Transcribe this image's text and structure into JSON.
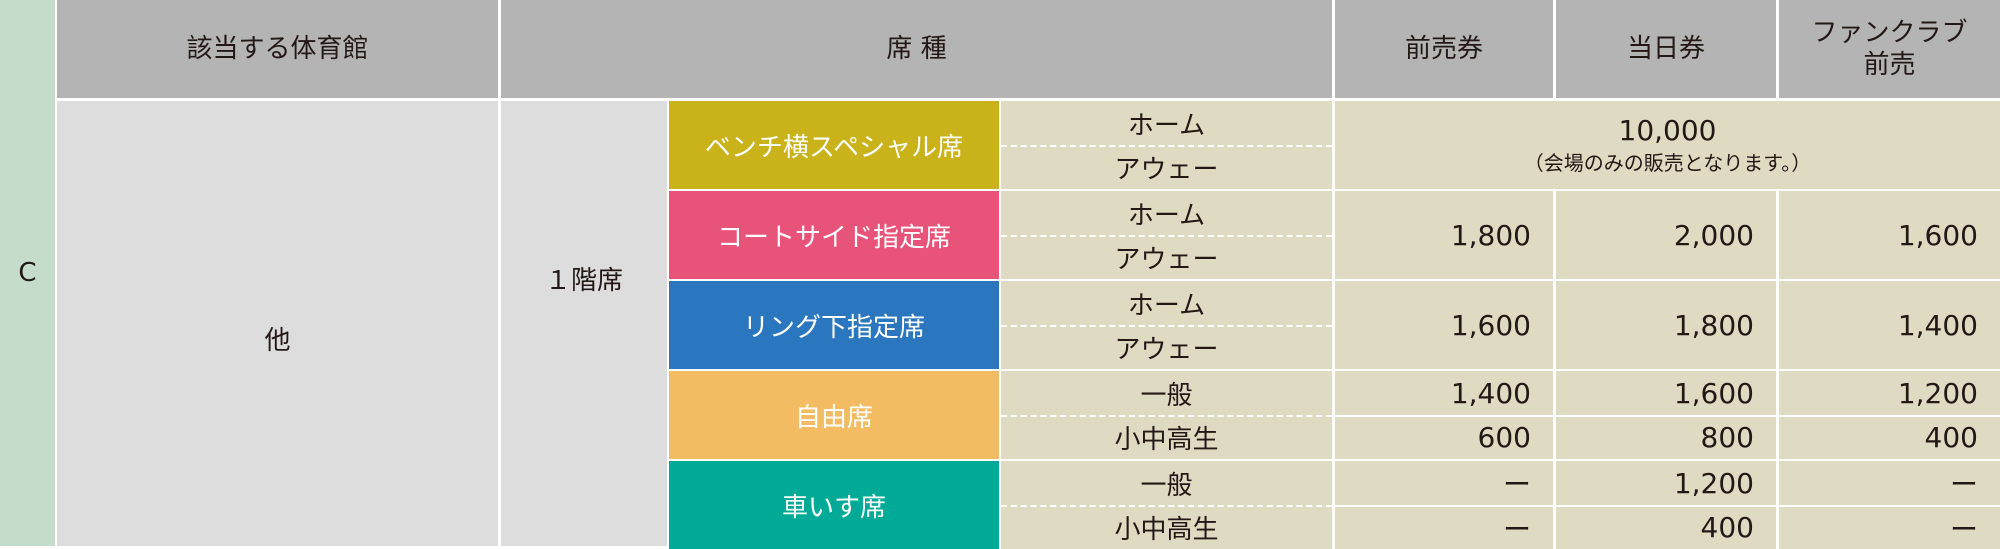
{
  "section_label": "C",
  "header": {
    "venue": "該当する体育館",
    "seat_type": "席 種",
    "advance": "前売券",
    "same_day": "当日券",
    "fanclub_line1": "ファンクラブ",
    "fanclub_line2": "前売"
  },
  "venue_value": "他",
  "floor": "１階席",
  "colors": {
    "section_strip": "#c5dccb",
    "header_bg": "#b4b4b4",
    "gray_cell": "#dddddd",
    "price_cell": "#dfdbc3"
  },
  "seats": [
    {
      "name": "ベンチ横スペシャル席",
      "color": "#c9b21a",
      "subs": [
        "ホーム",
        "アウェー"
      ],
      "merged_price": "10,000",
      "merged_note": "（会場のみの販売となります。）"
    },
    {
      "name": "コートサイド指定席",
      "color": "#e8537a",
      "subs": [
        "ホーム",
        "アウェー"
      ],
      "advance": "1,800",
      "same_day": "2,000",
      "fanclub": "1,600"
    },
    {
      "name": "リング下指定席",
      "color": "#2a77c0",
      "subs": [
        "ホーム",
        "アウェー"
      ],
      "advance": "1,600",
      "same_day": "1,800",
      "fanclub": "1,400"
    },
    {
      "name": "自由席",
      "color": "#f3bc62",
      "subs": [
        "一般",
        "小中高生"
      ],
      "sub_prices": [
        {
          "advance": "1,400",
          "same_day": "1,600",
          "fanclub": "1,200"
        },
        {
          "advance": "600",
          "same_day": "800",
          "fanclub": "400"
        }
      ]
    },
    {
      "name": "車いす席",
      "color": "#00aa96",
      "subs": [
        "一般",
        "小中高生"
      ],
      "sub_prices": [
        {
          "advance": "ー",
          "same_day": "1,200",
          "fanclub": "ー"
        },
        {
          "advance": "ー",
          "same_day": "400",
          "fanclub": "ー"
        }
      ]
    }
  ]
}
